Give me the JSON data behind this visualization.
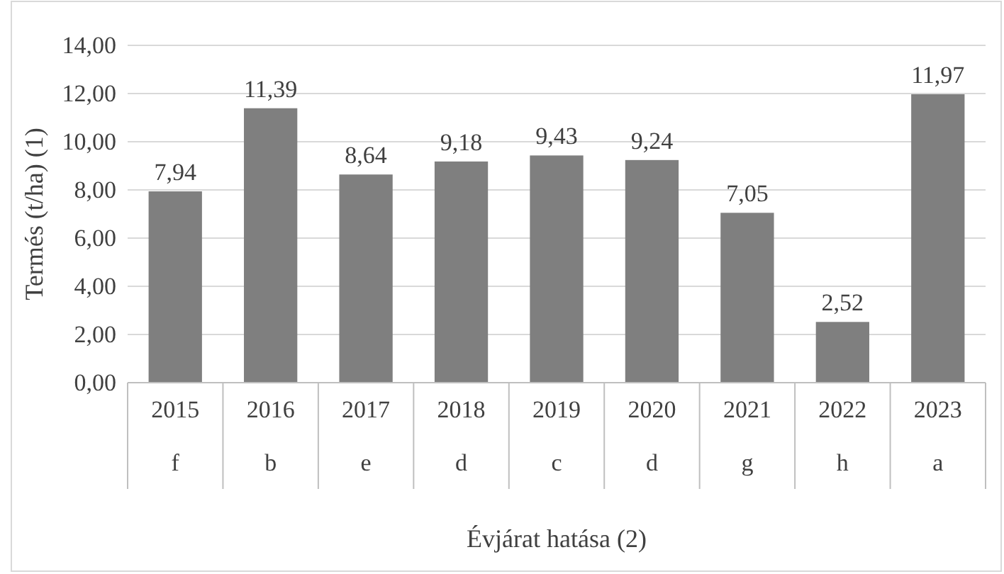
{
  "chart_data": {
    "type": "bar",
    "ylabel": "Termés (t/ha) (1)",
    "xlabel": "Évjárat hatása (2)",
    "categories": [
      "2015",
      "2016",
      "2017",
      "2018",
      "2019",
      "2020",
      "2021",
      "2022",
      "2023"
    ],
    "values": [
      7.94,
      11.39,
      8.64,
      9.18,
      9.43,
      9.24,
      7.05,
      2.52,
      11.97
    ],
    "value_labels": [
      "7,94",
      "11,39",
      "8,64",
      "9,18",
      "9,43",
      "9,24",
      "7,05",
      "2,52",
      "11,97"
    ],
    "color": "#7f7f7f",
    "ylim": [
      0,
      14
    ],
    "yticks": [
      {
        "value": 0,
        "label": "0,00"
      },
      {
        "value": 2,
        "label": "2,00"
      },
      {
        "value": 4,
        "label": "4,00"
      },
      {
        "value": 6,
        "label": "6,00"
      },
      {
        "value": 8,
        "label": "8,00"
      },
      {
        "value": 10,
        "label": "10,00"
      },
      {
        "value": 12,
        "label": "12,00"
      },
      {
        "value": 14,
        "label": "14,00"
      }
    ],
    "grid": "y",
    "annotations": [
      "f",
      "b",
      "e",
      "d",
      "c",
      "d",
      "g",
      "h",
      "a"
    ]
  }
}
